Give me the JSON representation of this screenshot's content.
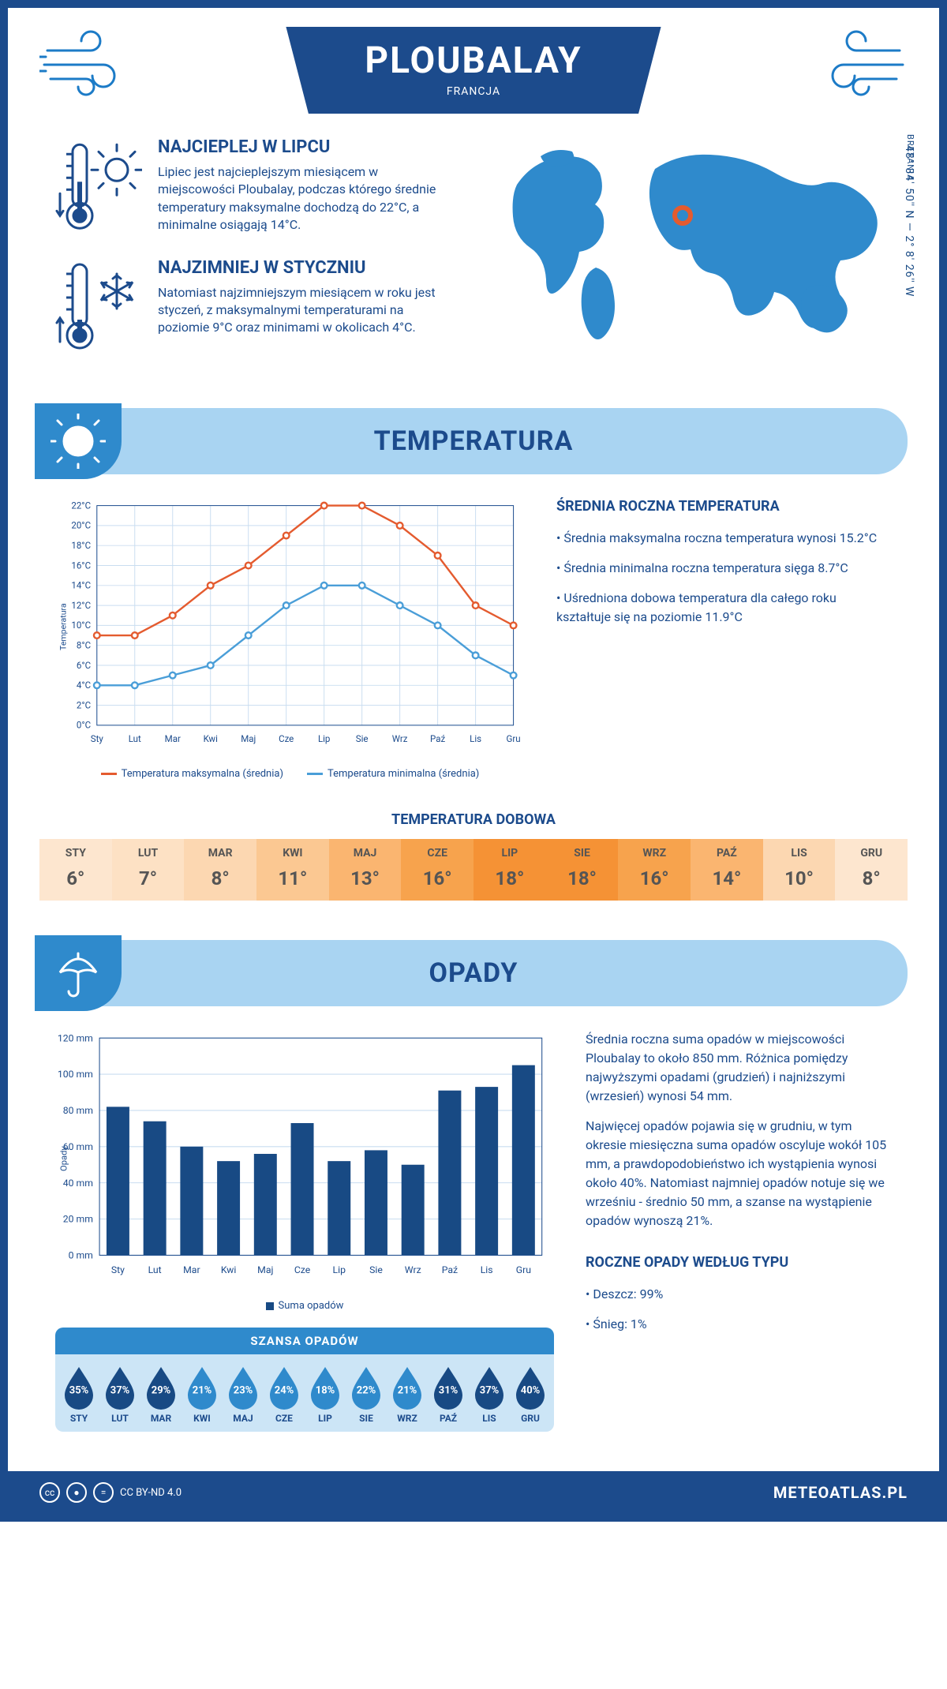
{
  "header": {
    "city": "PLOUBALAY",
    "country": "FRANCJA",
    "coords": "48° 34' 50'' N — 2° 8' 26'' W",
    "region": "BRETANIA"
  },
  "info": {
    "hot": {
      "title": "NAJCIEPLEJ W LIPCU",
      "text": "Lipiec jest najcieplejszym miesiącem w miejscowości Ploubalay, podczas którego średnie temperatury maksymalne dochodzą do 22°C, a minimalne osiągają 14°C."
    },
    "cold": {
      "title": "NAJZIMNIEJ W STYCZNIU",
      "text": "Natomiast najzimniejszym miesiącem w roku jest styczeń, z maksymalnymi temperaturami na poziomie 9°C oraz minimami w okolicach 4°C."
    },
    "map_marker": {
      "cx_pct": 48,
      "cy_pct": 38
    }
  },
  "colors": {
    "primary": "#1c4b8c",
    "accent": "#2f8acc",
    "light": "#a9d4f2",
    "max_line": "#e45b2f",
    "min_line": "#4a9ed8",
    "bar": "#184a84",
    "grid": "#c9ddf0"
  },
  "sections": {
    "temp": "TEMPERATURA",
    "precip": "OPADY"
  },
  "months": [
    "Sty",
    "Lut",
    "Mar",
    "Kwi",
    "Maj",
    "Cze",
    "Lip",
    "Sie",
    "Wrz",
    "Paź",
    "Lis",
    "Gru"
  ],
  "months_upper": [
    "STY",
    "LUT",
    "MAR",
    "KWI",
    "MAJ",
    "CZE",
    "LIP",
    "SIE",
    "WRZ",
    "PAŹ",
    "LIS",
    "GRU"
  ],
  "temp_chart": {
    "type": "line",
    "series": {
      "max": [
        9,
        9,
        11,
        14,
        16,
        19,
        22,
        22,
        20,
        17,
        12,
        10
      ],
      "min": [
        4,
        4,
        5,
        6,
        9,
        12,
        14,
        14,
        12,
        10,
        7,
        5
      ]
    },
    "ylim": [
      0,
      22
    ],
    "ytick_step": 2,
    "ylabel": "Temperatura",
    "legend": {
      "max": "Temperatura maksymalna (średnia)",
      "min": "Temperatura minimalna (średnia)"
    }
  },
  "temp_text": {
    "heading": "ŚREDNIA ROCZNA TEMPERATURA",
    "bullets": [
      "• Średnia maksymalna roczna temperatura wynosi 15.2°C",
      "• Średnia minimalna roczna temperatura sięga 8.7°C",
      "• Uśredniona dobowa temperatura dla całego roku kształtuje się na poziomie 11.9°C"
    ]
  },
  "temp_daily": {
    "title": "TEMPERATURA DOBOWA",
    "values": [
      6,
      7,
      8,
      11,
      13,
      16,
      18,
      18,
      16,
      14,
      10,
      8
    ],
    "cell_colors": [
      "#fde6cf",
      "#fde1c4",
      "#fcd7b1",
      "#fbc892",
      "#fab570",
      "#f7a34d",
      "#f59235",
      "#f59235",
      "#f7a34d",
      "#fab570",
      "#fcd7b1",
      "#fde6cf"
    ]
  },
  "precip_chart": {
    "type": "bar",
    "values": [
      82,
      74,
      60,
      52,
      56,
      73,
      52,
      58,
      50,
      91,
      93,
      105
    ],
    "ylim": [
      0,
      120
    ],
    "ytick_step": 20,
    "ylabel": "Opady",
    "legend": "Suma opadów"
  },
  "precip_text": {
    "p1": "Średnia roczna suma opadów w miejscowości Ploubalay to około 850 mm. Różnica pomiędzy najwyższymi opadami (grudzień) i najniższymi (wrzesień) wynosi 54 mm.",
    "p2": "Najwięcej opadów pojawia się w grudniu, w tym okresie miesięczna suma opadów oscyluje wokół 105 mm, a prawdopodobieństwo ich wystąpienia wynosi około 40%. Natomiast najmniej opadów notuje się we wrześniu - średnio 50 mm, a szanse na wystąpienie opadów wynoszą 21%."
  },
  "precip_chance": {
    "title": "SZANSA OPADÓW",
    "values": [
      35,
      37,
      29,
      21,
      23,
      24,
      18,
      22,
      21,
      31,
      37,
      40
    ],
    "drop_colors": [
      "#184a84",
      "#184a84",
      "#184a84",
      "#2f8acc",
      "#2f8acc",
      "#2f8acc",
      "#2f8acc",
      "#2f8acc",
      "#2f8acc",
      "#184a84",
      "#184a84",
      "#184a84"
    ]
  },
  "precip_type": {
    "heading": "ROCZNE OPADY WEDŁUG TYPU",
    "rain": "• Deszcz: 99%",
    "snow": "• Śnieg: 1%"
  },
  "footer": {
    "license": "CC BY-ND 4.0",
    "site": "METEOATLAS.PL"
  }
}
